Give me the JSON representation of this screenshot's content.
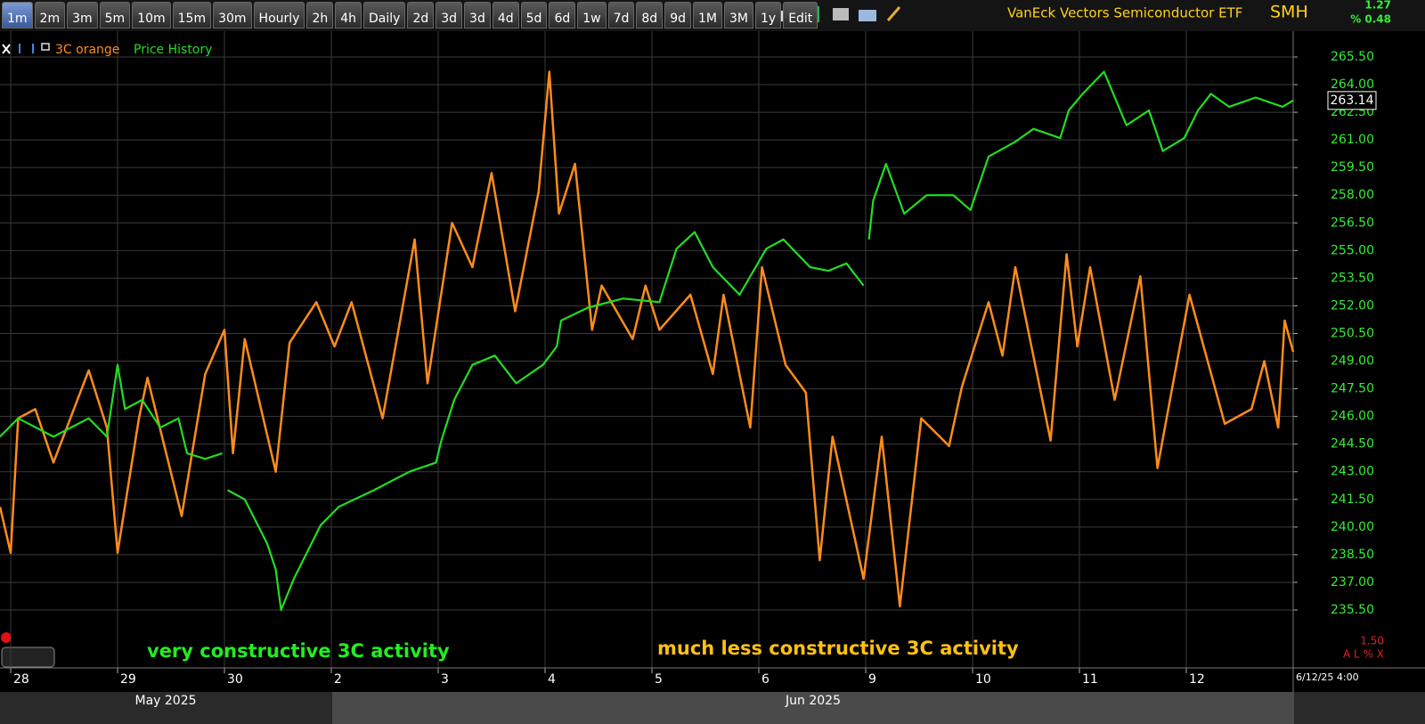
{
  "toolbar": {
    "intervals": [
      "1m",
      "2m",
      "3m",
      "5m",
      "10m",
      "15m",
      "30m",
      "Hourly",
      "2h",
      "4h",
      "Daily",
      "2d",
      "3d",
      "3d",
      "4d",
      "5d",
      "6d",
      "1w",
      "7d",
      "8d",
      "9d",
      "1M",
      "3M",
      "1y",
      "Edit"
    ],
    "title": "VanEck Vectors Semiconductor ETF",
    "symbol": "SMH",
    "change": "1.27",
    "change_percent": "% 0.48"
  },
  "chart_data": {
    "type": "line",
    "xlim": [
      -0.1,
      12.0
    ],
    "xticks": [
      {
        "value": 0,
        "label": "28"
      },
      {
        "value": 1,
        "label": "29"
      },
      {
        "value": 2,
        "label": "30"
      },
      {
        "value": 3,
        "label": "2"
      },
      {
        "value": 4,
        "label": "3"
      },
      {
        "value": 5,
        "label": "4"
      },
      {
        "value": 6,
        "label": "5"
      },
      {
        "value": 7,
        "label": "6"
      },
      {
        "value": 8,
        "label": "9"
      },
      {
        "value": 9,
        "label": "10"
      },
      {
        "value": 10,
        "label": "11"
      },
      {
        "value": 11,
        "label": "12"
      }
    ],
    "ylim": [
      232.36,
      266.9
    ],
    "yticks": [
      {
        "value": 235.5,
        "label": "235.50"
      },
      {
        "value": 237,
        "label": "237.00"
      },
      {
        "value": 238.5,
        "label": "238.50"
      },
      {
        "value": 240,
        "label": "240.00"
      },
      {
        "value": 241.5,
        "label": "241.50"
      },
      {
        "value": 243,
        "label": "243.00"
      },
      {
        "value": 244.5,
        "label": "244.50"
      },
      {
        "value": 246,
        "label": "246.00"
      },
      {
        "value": 247.5,
        "label": "247.50"
      },
      {
        "value": 249,
        "label": "249.00"
      },
      {
        "value": 250.5,
        "label": "250.50"
      },
      {
        "value": 252,
        "label": "252.00"
      },
      {
        "value": 253.5,
        "label": "253.50"
      },
      {
        "value": 255,
        "label": "255.00"
      },
      {
        "value": 256.5,
        "label": "256.50"
      },
      {
        "value": 258,
        "label": "258.00"
      },
      {
        "value": 259.5,
        "label": "259.50"
      },
      {
        "value": 261,
        "label": "261.00"
      },
      {
        "value": 262.5,
        "label": "262.50"
      },
      {
        "value": 264,
        "label": "264.00"
      },
      {
        "value": 265.5,
        "label": "265.50"
      }
    ],
    "grid": true,
    "series": [
      {
        "name": "3C orange",
        "color": "#ff8c1a",
        "x": [
          -0.1,
          0.0,
          0.07,
          0.23,
          0.4,
          0.73,
          0.9,
          1.0,
          1.2,
          1.28,
          1.6,
          1.82,
          2.0,
          2.08,
          2.19,
          2.48,
          2.61,
          2.86,
          3.03,
          3.19,
          3.48,
          3.78,
          3.9,
          4.13,
          4.32,
          4.5,
          4.72,
          4.94,
          5.04,
          5.13,
          5.28,
          5.44,
          5.53,
          5.82,
          5.94,
          6.07,
          6.36,
          6.57,
          6.67,
          6.92,
          7.03,
          7.25,
          7.44,
          7.57,
          7.69,
          7.98,
          8.15,
          8.32,
          8.52,
          8.78,
          8.9,
          9.15,
          9.28,
          9.4,
          9.73,
          9.88,
          9.98,
          10.1,
          10.33,
          10.57,
          10.73,
          10.86,
          11.03,
          11.36,
          11.61,
          11.73,
          11.86,
          11.92,
          12.0
        ],
        "values": [
          241.1,
          238.6,
          245.9,
          246.4,
          243.5,
          248.5,
          245.4,
          238.6,
          245.9,
          248.1,
          240.6,
          248.3,
          250.7,
          244,
          250.2,
          243,
          250,
          252.2,
          249.8,
          252.2,
          245.9,
          255.6,
          247.8,
          256.5,
          254.1,
          259.2,
          251.7,
          258.2,
          264.7,
          257,
          259.7,
          250.7,
          253.1,
          250.2,
          253.1,
          250.7,
          252.6,
          248.3,
          252.6,
          245.4,
          254.1,
          248.8,
          247.3,
          238.2,
          244.9,
          237.2,
          244.9,
          235.7,
          245.9,
          244.4,
          247.6,
          252.2,
          249.3,
          254.1,
          244.7,
          254.8,
          249.8,
          254.1,
          246.9,
          253.6,
          243.2,
          247.3,
          252.6,
          245.6,
          246.4,
          249,
          245.4,
          251.2,
          249.5
        ]
      },
      {
        "name": "Price History",
        "color": "#22dd22",
        "x": [
          -0.1,
          0.07,
          0.4,
          0.73,
          0.9,
          1.0,
          1.07,
          1.23,
          1.4,
          1.57,
          1.65,
          1.82,
          1.98,
          null,
          2.03,
          2.19,
          2.4,
          2.48,
          2.53,
          2.65,
          2.9,
          3.07,
          3.4,
          3.73,
          3.98,
          4.03,
          4.15,
          4.32,
          4.53,
          4.73,
          4.98,
          5.11,
          5.15,
          5.4,
          5.73,
          6.07,
          6.23,
          6.4,
          6.57,
          6.82,
          7.07,
          7.23,
          7.48,
          7.65,
          7.82,
          7.98,
          null,
          8.03,
          8.07,
          8.19,
          8.36,
          8.57,
          8.82,
          8.98,
          9.15,
          9.4,
          9.57,
          9.82,
          9.9,
          10.03,
          10.23,
          10.44,
          10.65,
          10.78,
          10.98,
          11.11,
          11.23,
          11.4,
          11.65,
          11.9,
          12.0
        ],
        "values": [
          244.9,
          245.9,
          244.9,
          245.9,
          244.9,
          248.8,
          246.4,
          246.9,
          245.4,
          245.9,
          244,
          243.7,
          244,
          null,
          242,
          241.5,
          239.1,
          237.7,
          235.5,
          237.2,
          240.1,
          241.1,
          242,
          243,
          243.5,
          244.7,
          246.9,
          248.8,
          249.3,
          247.8,
          248.8,
          249.8,
          251.2,
          251.9,
          252.4,
          252.2,
          255.1,
          256,
          254.1,
          252.6,
          255.1,
          255.6,
          254.1,
          253.9,
          254.3,
          253.1,
          null,
          255.6,
          257.7,
          259.7,
          257,
          258,
          258,
          257.2,
          260.1,
          260.9,
          261.6,
          261.1,
          262.6,
          263.5,
          264.7,
          261.8,
          262.6,
          260.4,
          261.1,
          262.6,
          263.5,
          262.8,
          263.3,
          262.8,
          263.14
        ]
      }
    ],
    "last_price": 263.14,
    "annotations": [
      {
        "text": "very constructive 3C activity",
        "color": "#22ee22"
      },
      {
        "text": "much less constructive 3C activity",
        "color": "#ffc20e"
      }
    ],
    "months": [
      "May 2025",
      "Jun 2025"
    ],
    "timestamp": "6/12/25 4:00"
  },
  "corner": {
    "scale": "1.50",
    "buttons": "A L % X"
  }
}
